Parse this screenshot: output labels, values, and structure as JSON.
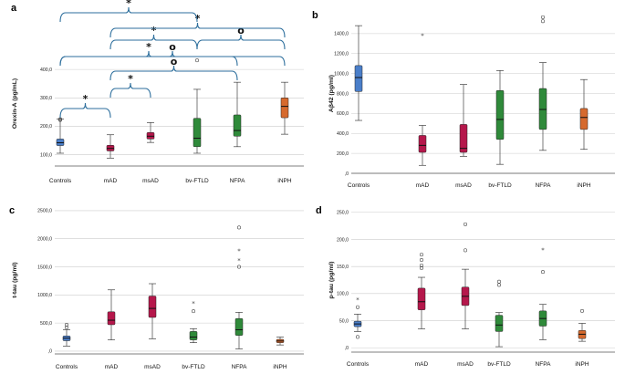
{
  "figure": {
    "colors": {
      "Controls": "#4a7ec9",
      "mAD": "#b5174b",
      "msAD": "#b5174b",
      "bv-FTLD": "#2f8a3a",
      "NFPA": "#2f8a3a",
      "iNPH": "#d66a2e",
      "bracket": "#2c6e9c",
      "grid": "#cccccc"
    }
  },
  "chart_data": [
    {
      "type": "box",
      "panel_label": "a",
      "ylabel": "Orexin-A (pg/mL)",
      "ylim": [
        60,
        500
      ],
      "yticks": [
        100,
        200,
        300,
        400
      ],
      "ytick_labels": [
        "100,0",
        "200,0",
        "300,0",
        "400,0"
      ],
      "categories": [
        "Controls",
        "mAD",
        "msAD",
        "bv-FTLD",
        "NFPA",
        "iNPH"
      ],
      "boxes": [
        {
          "min": 105,
          "q1": 132,
          "median": 142,
          "q3": 155,
          "max": 225
        },
        {
          "min": 88,
          "q1": 113,
          "median": 122,
          "q3": 133,
          "max": 170
        },
        {
          "min": 143,
          "q1": 155,
          "median": 165,
          "q3": 178,
          "max": 213
        },
        {
          "min": 105,
          "q1": 128,
          "median": 158,
          "q3": 228,
          "max": 330
        },
        {
          "min": 128,
          "q1": 165,
          "median": 185,
          "q3": 240,
          "max": 355
        },
        {
          "min": 172,
          "q1": 230,
          "median": 270,
          "q3": 300,
          "max": 355
        }
      ],
      "outliers": [
        {
          "category": "Controls",
          "value": 225,
          "marker": "o"
        },
        {
          "category": "Controls",
          "value": 222,
          "marker": "o"
        },
        {
          "category": "bv-FTLD",
          "value": 432,
          "marker": "o"
        }
      ],
      "comparisons": [
        {
          "from": "Controls",
          "to": "mAD",
          "label": "*"
        },
        {
          "from": "mAD",
          "to": "msAD",
          "label": "*"
        },
        {
          "from": "mAD",
          "to": "NFPA",
          "label": "o"
        },
        {
          "from": "Controls",
          "to": "iNPH",
          "label": "o"
        },
        {
          "from": "Controls",
          "to": "NFPA",
          "label": "*"
        },
        {
          "from": "mAD",
          "to": "bv-FTLD",
          "label": "*"
        },
        {
          "from": "bv-FTLD",
          "to": "iNPH",
          "label": "o"
        },
        {
          "from": "mAD",
          "to": "iNPH",
          "label": "*"
        },
        {
          "from": "Controls",
          "to": "bv-FTLD",
          "label": "*"
        }
      ]
    },
    {
      "type": "box",
      "panel_label": "b",
      "ylabel": "Aβ42 (pg/ml)",
      "ylim": [
        0,
        1600
      ],
      "yticks": [
        0,
        200,
        400,
        600,
        800,
        1000,
        1200,
        1400
      ],
      "ytick_labels": [
        ",0",
        "200,0",
        "400,0",
        "600,0",
        "800,0",
        "1000,0",
        "1200,0",
        "1400,0"
      ],
      "categories": [
        "Controls",
        "mAD",
        "msAD",
        "bv-FTLD",
        "NFPA",
        "iNPH"
      ],
      "boxes": [
        {
          "min": 530,
          "q1": 820,
          "median": 960,
          "q3": 1080,
          "max": 1480
        },
        {
          "min": 80,
          "q1": 210,
          "median": 280,
          "q3": 380,
          "max": 480
        },
        {
          "min": 170,
          "q1": 210,
          "median": 250,
          "q3": 490,
          "max": 890
        },
        {
          "min": 90,
          "q1": 340,
          "median": 540,
          "q3": 830,
          "max": 1030
        },
        {
          "min": 230,
          "q1": 440,
          "median": 640,
          "q3": 850,
          "max": 1110
        },
        {
          "min": 240,
          "q1": 440,
          "median": 560,
          "q3": 650,
          "max": 940
        }
      ],
      "outliers": [
        {
          "category": "mAD",
          "value": 1380,
          "marker": "*"
        },
        {
          "category": "NFPA",
          "value": 1565,
          "marker": "o"
        },
        {
          "category": "NFPA",
          "value": 1525,
          "marker": "o"
        }
      ]
    },
    {
      "type": "box",
      "panel_label": "c",
      "ylabel": "t-tau (pg/ml)",
      "ylim": [
        -50,
        2580
      ],
      "yticks": [
        0,
        500,
        1000,
        1500,
        2000,
        2500
      ],
      "ytick_labels": [
        ",0",
        "500,0",
        "1000,0",
        "1500,0",
        "2000,0",
        "2500,0"
      ],
      "categories": [
        "Controls",
        "mAD",
        "msAD",
        "bv-FTLD",
        "NFPA",
        "iNPH"
      ],
      "boxes": [
        {
          "min": 90,
          "q1": 185,
          "median": 230,
          "q3": 270,
          "max": 380
        },
        {
          "min": 200,
          "q1": 470,
          "median": 550,
          "q3": 700,
          "max": 1090
        },
        {
          "min": 220,
          "q1": 600,
          "median": 760,
          "q3": 980,
          "max": 1200
        },
        {
          "min": 150,
          "q1": 200,
          "median": 250,
          "q3": 350,
          "max": 400
        },
        {
          "min": 40,
          "q1": 280,
          "median": 380,
          "q3": 580,
          "max": 690
        },
        {
          "min": 110,
          "q1": 150,
          "median": 180,
          "q3": 210,
          "max": 250
        }
      ],
      "outliers": [
        {
          "category": "Controls",
          "value": 470,
          "marker": "o"
        },
        {
          "category": "Controls",
          "value": 420,
          "marker": "o"
        },
        {
          "category": "bv-FTLD",
          "value": 850,
          "marker": "*"
        },
        {
          "category": "bv-FTLD",
          "value": 710,
          "marker": "o"
        },
        {
          "category": "NFPA",
          "value": 2200,
          "marker": "o"
        },
        {
          "category": "NFPA",
          "value": 1780,
          "marker": "*"
        },
        {
          "category": "NFPA",
          "value": 1610,
          "marker": "*"
        },
        {
          "category": "NFPA",
          "value": 1500,
          "marker": "o"
        }
      ]
    },
    {
      "type": "box",
      "panel_label": "d",
      "ylabel": "p-tau (pg/ml)",
      "ylim": [
        -8,
        258
      ],
      "yticks": [
        0,
        50,
        100,
        150,
        200,
        250
      ],
      "ytick_labels": [
        ",0",
        "50,0",
        "100,0",
        "150,0",
        "200,0",
        "250,0"
      ],
      "categories": [
        "Controls",
        "mAD",
        "msAD",
        "bv-FTLD",
        "NFPA",
        "iNPH"
      ],
      "boxes": [
        {
          "min": 30,
          "q1": 39,
          "median": 44,
          "q3": 49,
          "max": 62
        },
        {
          "min": 35,
          "q1": 70,
          "median": 85,
          "q3": 110,
          "max": 130
        },
        {
          "min": 35,
          "q1": 78,
          "median": 95,
          "q3": 112,
          "max": 145
        },
        {
          "min": 2,
          "q1": 30,
          "median": 42,
          "q3": 60,
          "max": 65
        },
        {
          "min": 15,
          "q1": 40,
          "median": 54,
          "q3": 68,
          "max": 80
        },
        {
          "min": 12,
          "q1": 17,
          "median": 25,
          "q3": 32,
          "max": 45
        }
      ],
      "outliers": [
        {
          "category": "Controls",
          "value": 88,
          "marker": "*"
        },
        {
          "category": "Controls",
          "value": 75,
          "marker": "o"
        },
        {
          "category": "Controls",
          "value": 20,
          "marker": "o"
        },
        {
          "category": "mAD",
          "value": 172,
          "marker": "o"
        },
        {
          "category": "mAD",
          "value": 162,
          "marker": "o"
        },
        {
          "category": "mAD",
          "value": 152,
          "marker": "o"
        },
        {
          "category": "mAD",
          "value": 147,
          "marker": "o"
        },
        {
          "category": "msAD",
          "value": 228,
          "marker": "o"
        },
        {
          "category": "msAD",
          "value": 180,
          "marker": "o"
        },
        {
          "category": "bv-FTLD",
          "value": 122,
          "marker": "o"
        },
        {
          "category": "bv-FTLD",
          "value": 116,
          "marker": "o"
        },
        {
          "category": "NFPA",
          "value": 180,
          "marker": "*"
        },
        {
          "category": "NFPA",
          "value": 140,
          "marker": "o"
        },
        {
          "category": "iNPH",
          "value": 68,
          "marker": "o"
        }
      ]
    }
  ]
}
